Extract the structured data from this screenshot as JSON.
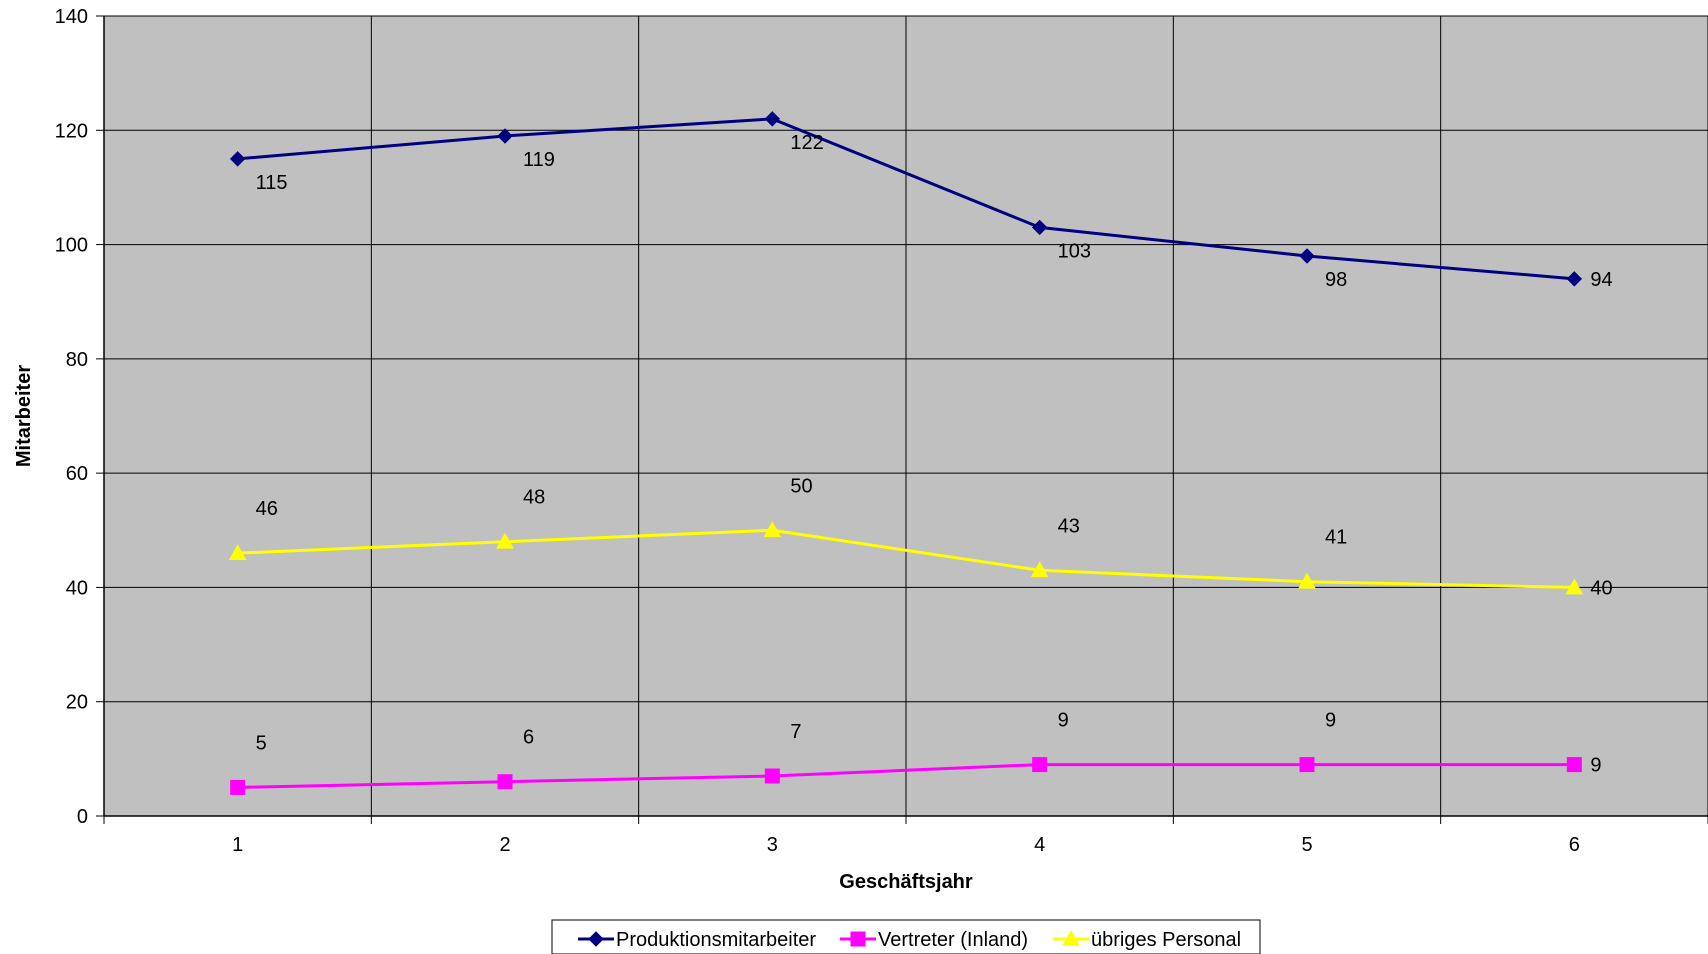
{
  "chart_data": {
    "type": "line",
    "xlabel": "Geschäftsjahr",
    "ylabel": "Mitarbeiter",
    "x": [
      1,
      2,
      3,
      4,
      5,
      6
    ],
    "ylim": [
      0,
      140
    ],
    "yticks": [
      0,
      20,
      40,
      60,
      80,
      100,
      120,
      140
    ],
    "grid": true,
    "legend_position": "bottom",
    "plot_background": "#c0c0c0",
    "series": [
      {
        "name": "Produktionsmitarbeiter",
        "values": [
          115,
          119,
          122,
          103,
          98,
          94
        ],
        "color": "#000080",
        "marker": "diamond",
        "label_position": "below"
      },
      {
        "name": "Vertreter (Inland)",
        "values": [
          5,
          6,
          7,
          9,
          9,
          9
        ],
        "color": "#ff00ff",
        "marker": "square",
        "label_position": "above"
      },
      {
        "name": "übriges Personal",
        "values": [
          46,
          48,
          50,
          43,
          41,
          40
        ],
        "color": "#ffff00",
        "marker": "triangle",
        "label_position": "above"
      }
    ]
  }
}
